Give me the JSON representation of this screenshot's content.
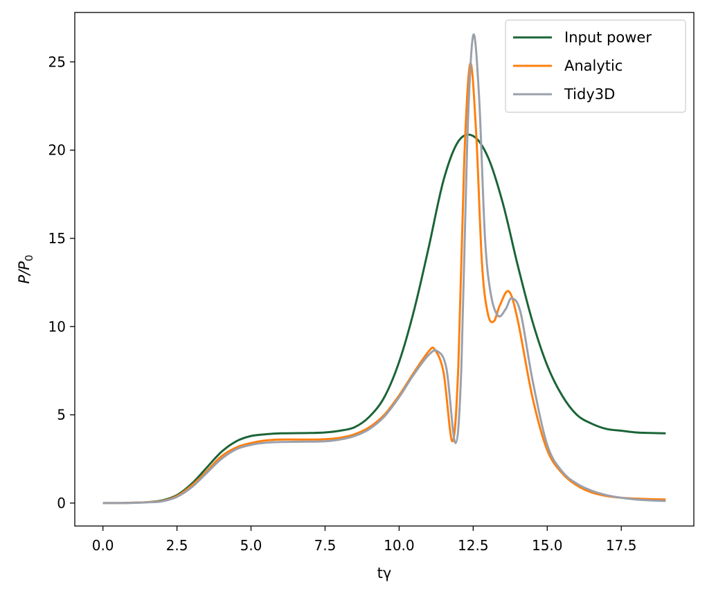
{
  "chart_data": {
    "type": "line",
    "xlabel": "tγ",
    "ylabel": "P/P₀",
    "ylabel_main": "P/P",
    "ylabel_sub": "0",
    "xlim": [
      -0.95,
      19.95
    ],
    "ylim": [
      -1.3,
      27.8
    ],
    "x_ticks": [
      0.0,
      2.5,
      5.0,
      7.5,
      10.0,
      12.5,
      15.0,
      17.5
    ],
    "x_tick_labels": [
      "0.0",
      "2.5",
      "5.0",
      "7.5",
      "10.0",
      "12.5",
      "15.0",
      "17.5"
    ],
    "y_ticks": [
      0,
      5,
      10,
      15,
      20,
      25
    ],
    "y_tick_labels": [
      "0",
      "5",
      "10",
      "15",
      "20",
      "25"
    ],
    "grid": false,
    "legend_position": "top-right",
    "series": [
      {
        "name": "Input power",
        "color": "#1b6437",
        "x": [
          0,
          0.5,
          1,
          1.5,
          2,
          2.5,
          3,
          3.5,
          4,
          4.5,
          5,
          5.5,
          6,
          7,
          7.5,
          8,
          8.5,
          9,
          9.5,
          10,
          10.5,
          11,
          11.5,
          12,
          12.5,
          13,
          13.5,
          14,
          14.5,
          15,
          15.5,
          16,
          16.5,
          17,
          17.5,
          18,
          18.5,
          19
        ],
        "values": [
          0.0,
          0.0,
          0.02,
          0.05,
          0.15,
          0.45,
          1.1,
          2.0,
          2.9,
          3.5,
          3.8,
          3.9,
          3.95,
          3.97,
          4.0,
          4.1,
          4.3,
          4.9,
          6.0,
          8.0,
          10.9,
          14.5,
          18.3,
          20.5,
          20.8,
          19.6,
          17.0,
          13.5,
          10.3,
          7.8,
          6.1,
          5.0,
          4.5,
          4.2,
          4.1,
          4.0,
          3.97,
          3.95
        ]
      },
      {
        "name": "Analytic",
        "color": "#ff7f0e",
        "x": [
          0,
          0.5,
          1,
          1.5,
          2,
          2.5,
          3,
          3.5,
          4,
          4.5,
          5,
          5.5,
          6,
          7,
          7.5,
          8,
          8.5,
          9,
          9.5,
          10,
          10.5,
          11,
          11.2,
          11.5,
          11.8,
          12,
          12.2,
          12.4,
          12.6,
          12.8,
          13,
          13.2,
          13.4,
          13.7,
          14,
          14.5,
          15,
          15.5,
          16,
          16.5,
          17,
          17.5,
          18,
          18.5,
          19
        ],
        "values": [
          0.0,
          0.0,
          0.02,
          0.05,
          0.12,
          0.4,
          1.0,
          1.8,
          2.65,
          3.15,
          3.4,
          3.55,
          3.6,
          3.6,
          3.62,
          3.7,
          3.9,
          4.3,
          5.0,
          6.1,
          7.4,
          8.6,
          8.7,
          7.4,
          3.5,
          7.8,
          19.5,
          24.9,
          21.0,
          13.5,
          10.7,
          10.3,
          11.2,
          12.0,
          10.4,
          6.0,
          3.0,
          1.7,
          1.0,
          0.6,
          0.4,
          0.3,
          0.25,
          0.22,
          0.2
        ]
      },
      {
        "name": "Tidy3D",
        "color": "#9aa0ac",
        "x": [
          0,
          0.5,
          1,
          1.5,
          2,
          2.5,
          3,
          3.5,
          4,
          4.5,
          5,
          5.5,
          6,
          7,
          7.5,
          8,
          8.5,
          9,
          9.5,
          10,
          10.5,
          11,
          11.3,
          11.6,
          11.9,
          12.1,
          12.3,
          12.5,
          12.7,
          12.9,
          13.1,
          13.35,
          13.6,
          13.8,
          14.1,
          14.5,
          15,
          15.5,
          16,
          16.5,
          17,
          17.5,
          18,
          18.5,
          19
        ],
        "values": [
          0.0,
          0.0,
          0.01,
          0.04,
          0.1,
          0.35,
          0.9,
          1.7,
          2.5,
          3.05,
          3.3,
          3.42,
          3.46,
          3.48,
          3.5,
          3.6,
          3.8,
          4.2,
          4.9,
          6.0,
          7.3,
          8.4,
          8.6,
          7.6,
          3.4,
          7.6,
          20.5,
          26.5,
          23.0,
          15.0,
          11.8,
          10.6,
          11.0,
          11.6,
          10.8,
          7.0,
          3.3,
          1.8,
          1.1,
          0.7,
          0.45,
          0.3,
          0.2,
          0.15,
          0.12
        ]
      }
    ]
  }
}
